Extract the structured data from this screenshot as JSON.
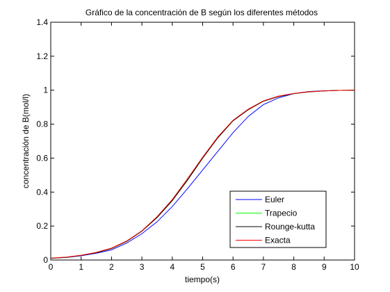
{
  "chart_data": {
    "type": "line",
    "title": "Gráfico de la concentración de B según los diferentes métodos",
    "xlabel": "tiempo(s)",
    "ylabel": "concentración de B(mol/l)",
    "xlim": [
      0,
      10
    ],
    "ylim": [
      0,
      1.4
    ],
    "xticks": [
      0,
      1,
      2,
      3,
      4,
      5,
      6,
      7,
      8,
      9,
      10
    ],
    "yticks": [
      0,
      0.2,
      0.4,
      0.6,
      0.8,
      1,
      1.2,
      1.4
    ],
    "xtick_labels": [
      "0",
      "1",
      "2",
      "3",
      "4",
      "5",
      "6",
      "7",
      "8",
      "9",
      "10"
    ],
    "ytick_labels": [
      "0",
      "0.2",
      "0.4",
      "0.6",
      "0.8",
      "1",
      "1.2",
      "1.4"
    ],
    "grid": false,
    "legend_position": "bottom-right",
    "x": [
      0,
      0.5,
      1,
      1.5,
      2,
      2.5,
      3,
      3.5,
      4,
      4.5,
      5,
      5.5,
      6,
      6.5,
      7,
      7.5,
      8,
      8.5,
      9,
      9.5,
      10
    ],
    "series": [
      {
        "name": "Euler",
        "color": "#0000ff",
        "values": [
          0.01,
          0.015,
          0.025,
          0.04,
          0.06,
          0.1,
          0.155,
          0.225,
          0.315,
          0.42,
          0.53,
          0.64,
          0.75,
          0.845,
          0.915,
          0.955,
          0.98,
          0.992,
          0.997,
          0.999,
          1.0
        ]
      },
      {
        "name": "Trapecio",
        "color": "#00ff00",
        "values": [
          0.01,
          0.016,
          0.027,
          0.043,
          0.068,
          0.11,
          0.17,
          0.25,
          0.35,
          0.47,
          0.6,
          0.72,
          0.82,
          0.885,
          0.935,
          0.963,
          0.98,
          0.99,
          0.996,
          0.999,
          1.0
        ]
      },
      {
        "name": "Rounge-kutta",
        "color": "#000000",
        "values": [
          0.01,
          0.016,
          0.027,
          0.043,
          0.068,
          0.11,
          0.17,
          0.25,
          0.35,
          0.47,
          0.6,
          0.72,
          0.82,
          0.885,
          0.935,
          0.963,
          0.98,
          0.99,
          0.996,
          0.999,
          1.0
        ]
      },
      {
        "name": "Exacta",
        "color": "#ff0000",
        "values": [
          0.011,
          0.017,
          0.028,
          0.045,
          0.07,
          0.112,
          0.172,
          0.255,
          0.356,
          0.478,
          0.605,
          0.725,
          0.823,
          0.888,
          0.937,
          0.965,
          0.981,
          0.991,
          0.996,
          0.999,
          1.0
        ]
      }
    ]
  }
}
